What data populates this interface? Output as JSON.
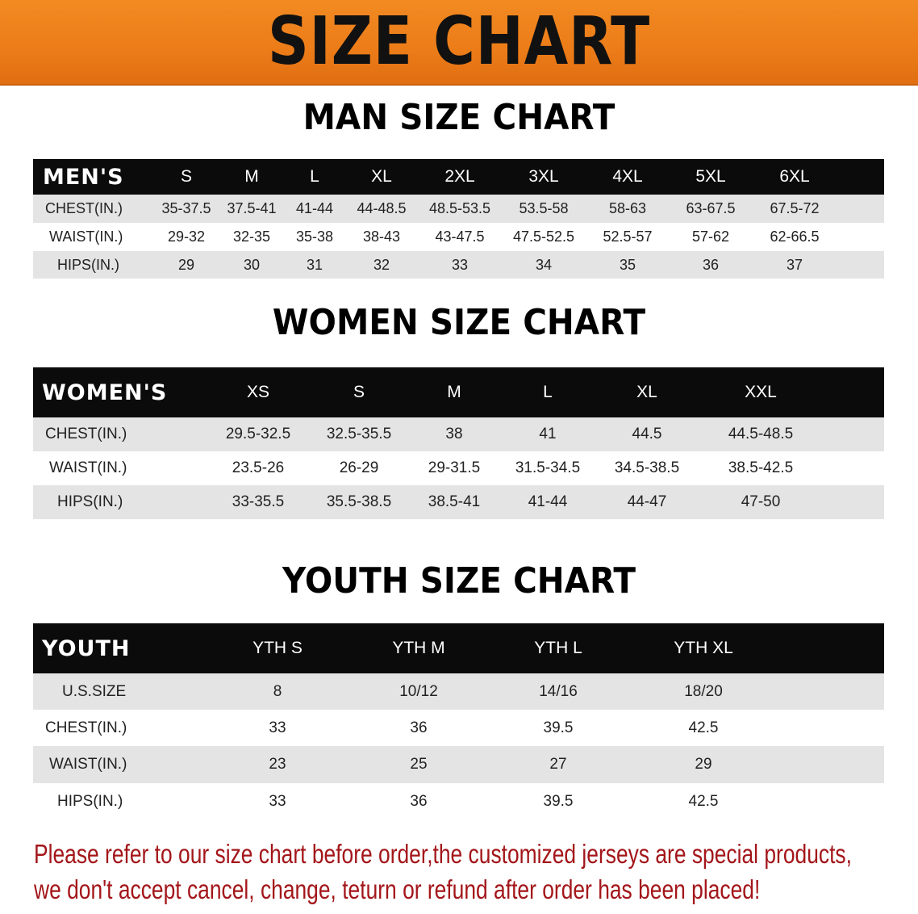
{
  "banner_title": "SIZE CHART",
  "men": {
    "title": "MAN SIZE CHART",
    "header": [
      "MEN'S",
      "S",
      "M",
      "L",
      "XL",
      "2XL",
      "3XL",
      "4XL",
      "5XL",
      "6XL"
    ],
    "rows": [
      [
        "CHEST(IN.)",
        "35-37.5",
        "37.5-41",
        "41-44",
        "44-48.5",
        "48.5-53.5",
        "53.5-58",
        "58-63",
        "63-67.5",
        "67.5-72"
      ],
      [
        "WAIST(IN.)",
        "29-32",
        "32-35",
        "35-38",
        "38-43",
        "43-47.5",
        "47.5-52.5",
        "52.5-57",
        "57-62",
        "62-66.5"
      ],
      [
        "HIPS(IN.)",
        "29",
        "30",
        "31",
        "32",
        "33",
        "34",
        "35",
        "36",
        "37"
      ]
    ]
  },
  "women": {
    "title": "WOMEN SIZE CHART",
    "header": [
      "WOMEN'S",
      "XS",
      "S",
      "M",
      "L",
      "XL",
      "XXL"
    ],
    "rows": [
      [
        "CHEST(IN.)",
        "29.5-32.5",
        "32.5-35.5",
        "38",
        "41",
        "44.5",
        "44.5-48.5"
      ],
      [
        "WAIST(IN.)",
        "23.5-26",
        "26-29",
        "29-31.5",
        "31.5-34.5",
        "34.5-38.5",
        "38.5-42.5"
      ],
      [
        "HIPS(IN.)",
        "33-35.5",
        "35.5-38.5",
        "38.5-41",
        "41-44",
        "44-47",
        "47-50"
      ]
    ]
  },
  "youth": {
    "title": "YOUTH SIZE CHART",
    "header": [
      "YOUTH",
      "YTH S",
      "YTH M",
      "YTH L",
      "YTH XL"
    ],
    "rows": [
      [
        "U.S.SIZE",
        "8",
        "10/12",
        "14/16",
        "18/20"
      ],
      [
        "CHEST(IN.)",
        "33",
        "36",
        "39.5",
        "42.5"
      ],
      [
        "WAIST(IN.)",
        "23",
        "25",
        "27",
        "29"
      ],
      [
        "HIPS(IN.)",
        "33",
        "36",
        "39.5",
        "42.5"
      ]
    ]
  },
  "notice": {
    "line1": "Please refer to our size chart before order,the customized jerseys are special products,",
    "line2": "we don't accept cancel, change, teturn or refund after order has been placed!"
  },
  "colors": {
    "banner": "#ec7c18",
    "header_row": "#0b0b0b",
    "stripe": "#e4e4e4",
    "notice": "#a3161a"
  }
}
